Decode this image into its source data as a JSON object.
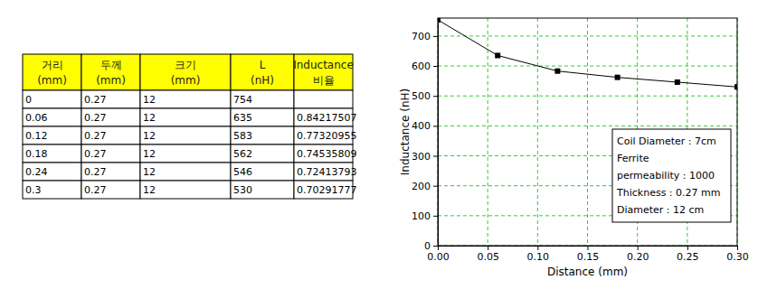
{
  "table": {
    "header": [
      [
        "거리",
        "(mm)"
      ],
      [
        "두께",
        "(mm)"
      ],
      [
        "크기",
        "(mm)"
      ],
      [
        "L",
        "(nH)"
      ],
      [
        "Inductance",
        "비율"
      ]
    ],
    "rows": [
      [
        0,
        0.27,
        12,
        754,
        null
      ],
      [
        0.06,
        0.27,
        12,
        635,
        0.84217507
      ],
      [
        0.12,
        0.27,
        12,
        583,
        0.77320955
      ],
      [
        0.18,
        0.27,
        12,
        562,
        0.74535809
      ],
      [
        0.24,
        0.27,
        12,
        546,
        0.72413793
      ],
      [
        0.3,
        0.27,
        12,
        530,
        0.70291777
      ]
    ]
  },
  "chart_data": {
    "type": "line",
    "x": [
      0,
      0.06,
      0.12,
      0.18,
      0.24,
      0.3
    ],
    "values": [
      754,
      635,
      583,
      562,
      546,
      530
    ],
    "color": "#000000",
    "marker": "square",
    "xlabel": "Distance (mm)",
    "ylabel": "Inductance (nH)",
    "xlim": [
      0,
      0.3
    ],
    "ylim": [
      0,
      760
    ],
    "xticks": [
      {
        "value": 0,
        "label": "0.00"
      },
      {
        "value": 0.05,
        "label": "0.05"
      },
      {
        "value": 0.1,
        "label": "0.10"
      },
      {
        "value": 0.15,
        "label": "0.15"
      },
      {
        "value": 0.2,
        "label": "0.20"
      },
      {
        "value": 0.25,
        "label": "0.25"
      },
      {
        "value": 0.3,
        "label": "0.30"
      }
    ],
    "yticks": [
      0,
      100,
      200,
      300,
      400,
      500,
      600,
      700
    ],
    "grid": true,
    "annotations": [
      "Coil Diameter : 7cm",
      "Ferrite",
      "permeability : 1000",
      "Thickness : 0.27 mm",
      "Diameter : 12 cm"
    ]
  }
}
